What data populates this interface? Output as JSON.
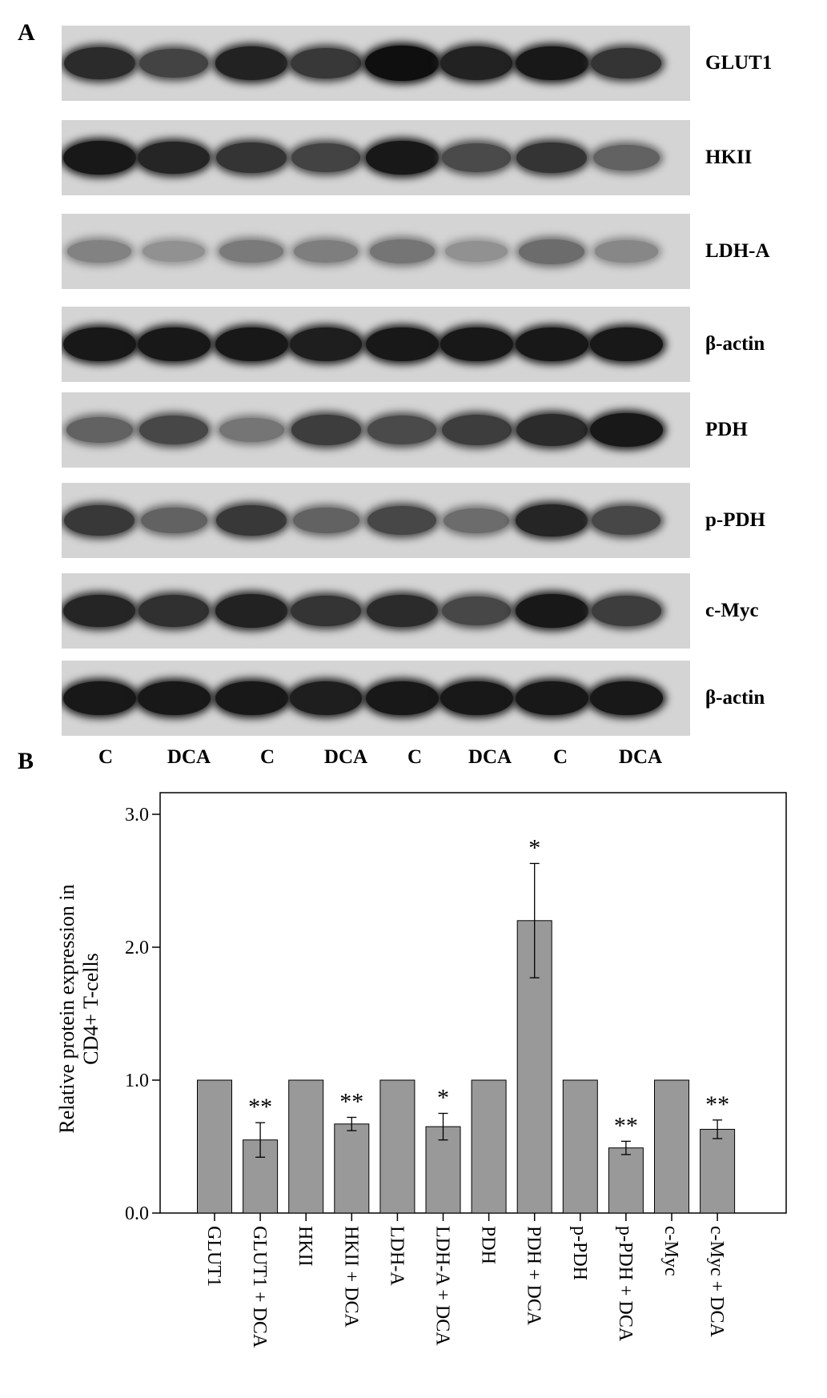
{
  "panel_labels": {
    "a": "A",
    "b": "B"
  },
  "blot": {
    "lanes": [
      "C",
      "DCA",
      "C",
      "DCA",
      "C",
      "DCA",
      "C",
      "DCA"
    ],
    "strips": [
      {
        "protein": "GLUT1",
        "intensity": [
          0.85,
          0.72,
          0.9,
          0.78,
          1.0,
          0.9,
          0.95,
          0.8
        ]
      },
      {
        "protein": "HKII",
        "intensity": [
          0.95,
          0.88,
          0.8,
          0.72,
          0.95,
          0.68,
          0.8,
          0.55
        ]
      },
      {
        "protein": "LDH-A",
        "intensity": [
          0.38,
          0.3,
          0.42,
          0.4,
          0.45,
          0.3,
          0.5,
          0.35
        ]
      },
      {
        "protein": "β-actin",
        "intensity": [
          0.95,
          0.95,
          0.95,
          0.92,
          0.95,
          0.95,
          0.95,
          0.95
        ]
      },
      {
        "protein": "PDH",
        "intensity": [
          0.55,
          0.7,
          0.45,
          0.75,
          0.68,
          0.75,
          0.85,
          0.95
        ]
      },
      {
        "protein": "p-PDH",
        "intensity": [
          0.78,
          0.55,
          0.78,
          0.55,
          0.7,
          0.5,
          0.88,
          0.7
        ]
      },
      {
        "protein": "c-Myc",
        "intensity": [
          0.88,
          0.82,
          0.9,
          0.8,
          0.85,
          0.7,
          0.95,
          0.75
        ]
      },
      {
        "protein": "β-actin",
        "intensity": [
          0.95,
          0.95,
          0.95,
          0.92,
          0.95,
          0.95,
          0.95,
          0.95
        ]
      }
    ]
  },
  "chart_data": {
    "type": "bar",
    "ylabel_line1": "Relative protein expression in",
    "ylabel_line2": "CD4+ T-cells",
    "ylim": [
      0,
      3.0
    ],
    "yticks": [
      "0.0",
      "1.0",
      "2.0",
      "3.0"
    ],
    "grid": false,
    "bar_color": "#999999",
    "categories": [
      "GLUT1",
      "GLUT1 + DCA",
      "HKII",
      "HKII + DCA",
      "LDH-A",
      "LDH-A + DCA",
      "PDH",
      "PDH + DCA",
      "p-PDH",
      "p-PDH + DCA",
      "c-Myc",
      "c-Myc + DCA"
    ],
    "values": [
      1.0,
      0.55,
      1.0,
      0.67,
      1.0,
      0.65,
      1.0,
      2.2,
      1.0,
      0.49,
      1.0,
      0.63
    ],
    "error": [
      0,
      0.13,
      0,
      0.05,
      0,
      0.1,
      0,
      0.43,
      0,
      0.05,
      0,
      0.07
    ],
    "significance": [
      "",
      "**",
      "",
      "**",
      "",
      "*",
      "",
      "*",
      "",
      "**",
      "",
      "**"
    ]
  }
}
